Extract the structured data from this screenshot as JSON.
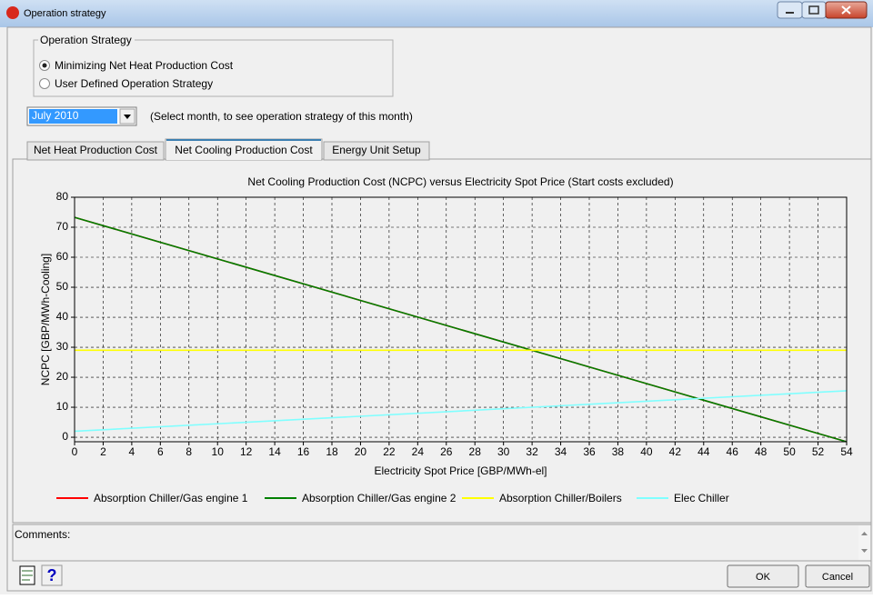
{
  "window": {
    "title": "Operation strategy"
  },
  "operation_strategy": {
    "label": "Operation Strategy",
    "options": [
      "Minimizing Net Heat Production Cost",
      "User Defined Operation Strategy"
    ],
    "selected": 0
  },
  "month": {
    "value": "July 2010",
    "hint": "(Select month, to see operation strategy of this month)"
  },
  "tabs": {
    "items": [
      "Net Heat Production Cost",
      "Net Cooling Production Cost",
      "Energy Unit Setup"
    ],
    "active": 1
  },
  "chart_data": {
    "type": "line",
    "title": "Net Cooling Production Cost (NCPC) versus Electricity Spot Price (Start costs excluded)",
    "x_label": "Electricity Spot Price [GBP/MWh-el]",
    "y_label": "NCPC [GBP/MWh-Cooling]",
    "x": [
      0,
      54
    ],
    "series": [
      {
        "name": "Absorption Chiller/Gas engine 1",
        "color": "#ff0000",
        "values": [
          73.3,
          -1.5
        ]
      },
      {
        "name": "Absorption Chiller/Gas engine 2",
        "color": "#008000",
        "values": [
          73.3,
          -1.5
        ]
      },
      {
        "name": "Absorption Chiller/Boilers",
        "color": "#ffff00",
        "values": [
          29,
          29
        ]
      },
      {
        "name": "Elec Chiller",
        "color": "#80ffff",
        "values": [
          2,
          15.5
        ]
      }
    ],
    "xlim": [
      0,
      54
    ],
    "xticks": [
      0,
      2,
      4,
      6,
      8,
      10,
      12,
      14,
      16,
      18,
      20,
      22,
      24,
      26,
      28,
      30,
      32,
      34,
      36,
      38,
      40,
      42,
      44,
      46,
      48,
      50,
      52,
      54
    ],
    "ylim": [
      -1.5,
      80
    ],
    "yticks": [
      0,
      10,
      20,
      30,
      40,
      50,
      60,
      70,
      80
    ],
    "grid": true
  },
  "comments": {
    "label": "Comments:"
  },
  "buttons": [
    "OK",
    "Cancel"
  ]
}
